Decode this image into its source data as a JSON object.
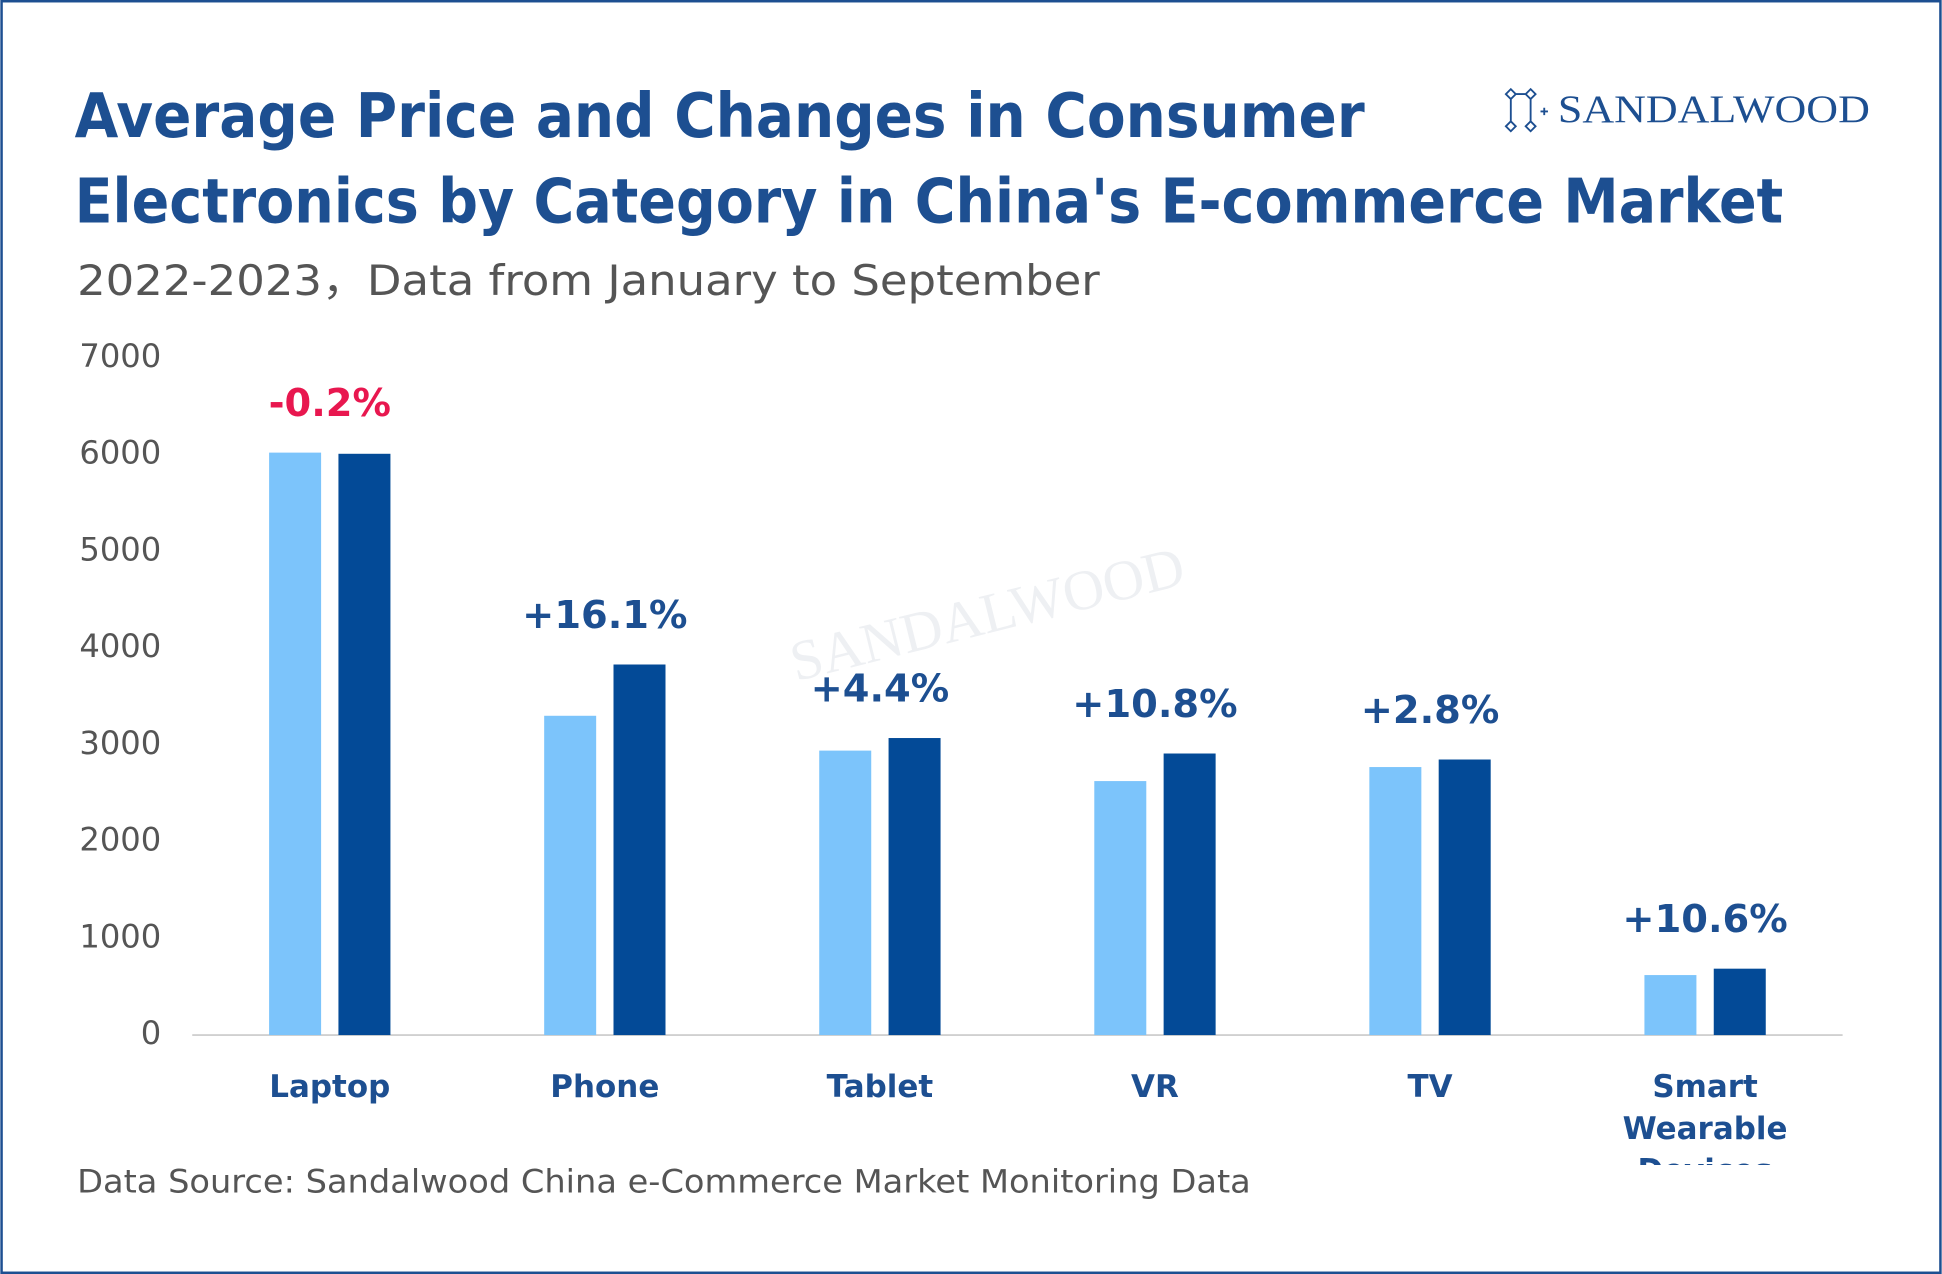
{
  "chart_data": {
    "type": "bar",
    "title": [
      "Average Price and Changes in Consumer",
      "Electronics by Category in China's E-commerce Market"
    ],
    "subtitle": "2022-2023，Data from January to September",
    "logo": "SANDALWOOD",
    "source": "Data Source: Sandalwood China e-Commerce Market Monitoring Data",
    "categories": [
      "Laptop",
      "Phone",
      "Tablet",
      "VR",
      "TV",
      "Smart Wearable Devices"
    ],
    "series": [
      {
        "color": "#7cc4fb",
        "values": [
          6020,
          3300,
          2940,
          2625,
          2770,
          620
        ]
      },
      {
        "color": "#034a97",
        "values": [
          6008,
          3830,
          3070,
          2910,
          2848,
          686
        ]
      }
    ],
    "change_labels": [
      "-0.2%",
      "+16.1%",
      "+4.4%",
      "+10.8%",
      "+2.8%",
      "+10.6%"
    ],
    "change_colors": [
      "#e8174f",
      "#1d4f91",
      "#1d4f91",
      "#1d4f91",
      "#1d4f91",
      "#1d4f91"
    ],
    "ylim": [
      0,
      7000
    ],
    "yticks": [
      0,
      1000,
      2000,
      3000,
      4000,
      5000,
      6000,
      7000
    ],
    "grid": false
  }
}
